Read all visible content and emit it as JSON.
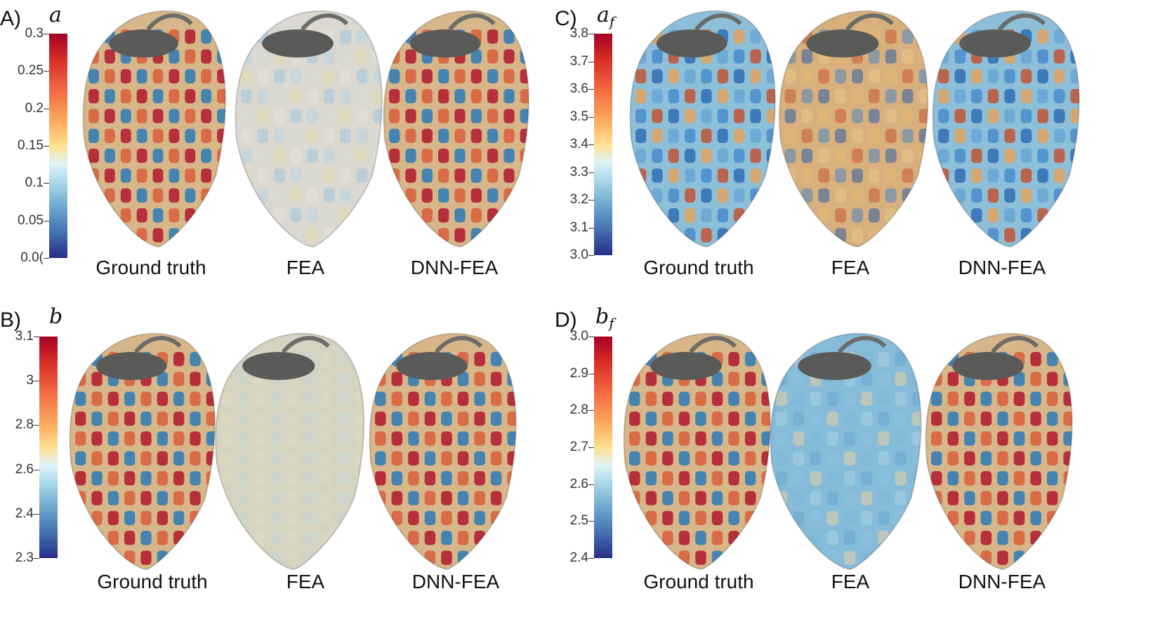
{
  "panels": [
    {
      "id": "A",
      "label": "A)",
      "param": "a",
      "sub": "",
      "ticks": [
        "0.3",
        "0.25",
        "0.2",
        "0.15",
        "0.1",
        "0.05",
        "0.0("
      ],
      "captions": [
        "Ground truth",
        "FEA",
        "DNN-FEA"
      ]
    },
    {
      "id": "C",
      "label": "C)",
      "param": "a",
      "sub": "f",
      "ticks": [
        "3.8",
        "3.7",
        "3.6",
        "3.5",
        "3.4",
        "3.3",
        "3.2",
        "3.1",
        "3.0"
      ],
      "captions": [
        "Ground truth",
        "FEA",
        "DNN-FEA"
      ]
    },
    {
      "id": "B",
      "label": "B)",
      "param": "b",
      "sub": "",
      "ticks": [
        "3.1",
        "3",
        "2.8",
        "2.6",
        "2.4",
        "2.3"
      ],
      "captions": [
        "Ground truth",
        "FEA",
        "DNN-FEA"
      ]
    },
    {
      "id": "D",
      "label": "D)",
      "param": "b",
      "sub": "f",
      "ticks": [
        "3.0",
        "2.9",
        "2.8",
        "2.7",
        "2.6",
        "2.5",
        "2.4"
      ],
      "captions": [
        "Ground truth",
        "FEA",
        "DNN-FEA"
      ]
    }
  ],
  "colors": {
    "high": "#a50026",
    "mid": "#fee090",
    "low": "#262d87"
  }
}
